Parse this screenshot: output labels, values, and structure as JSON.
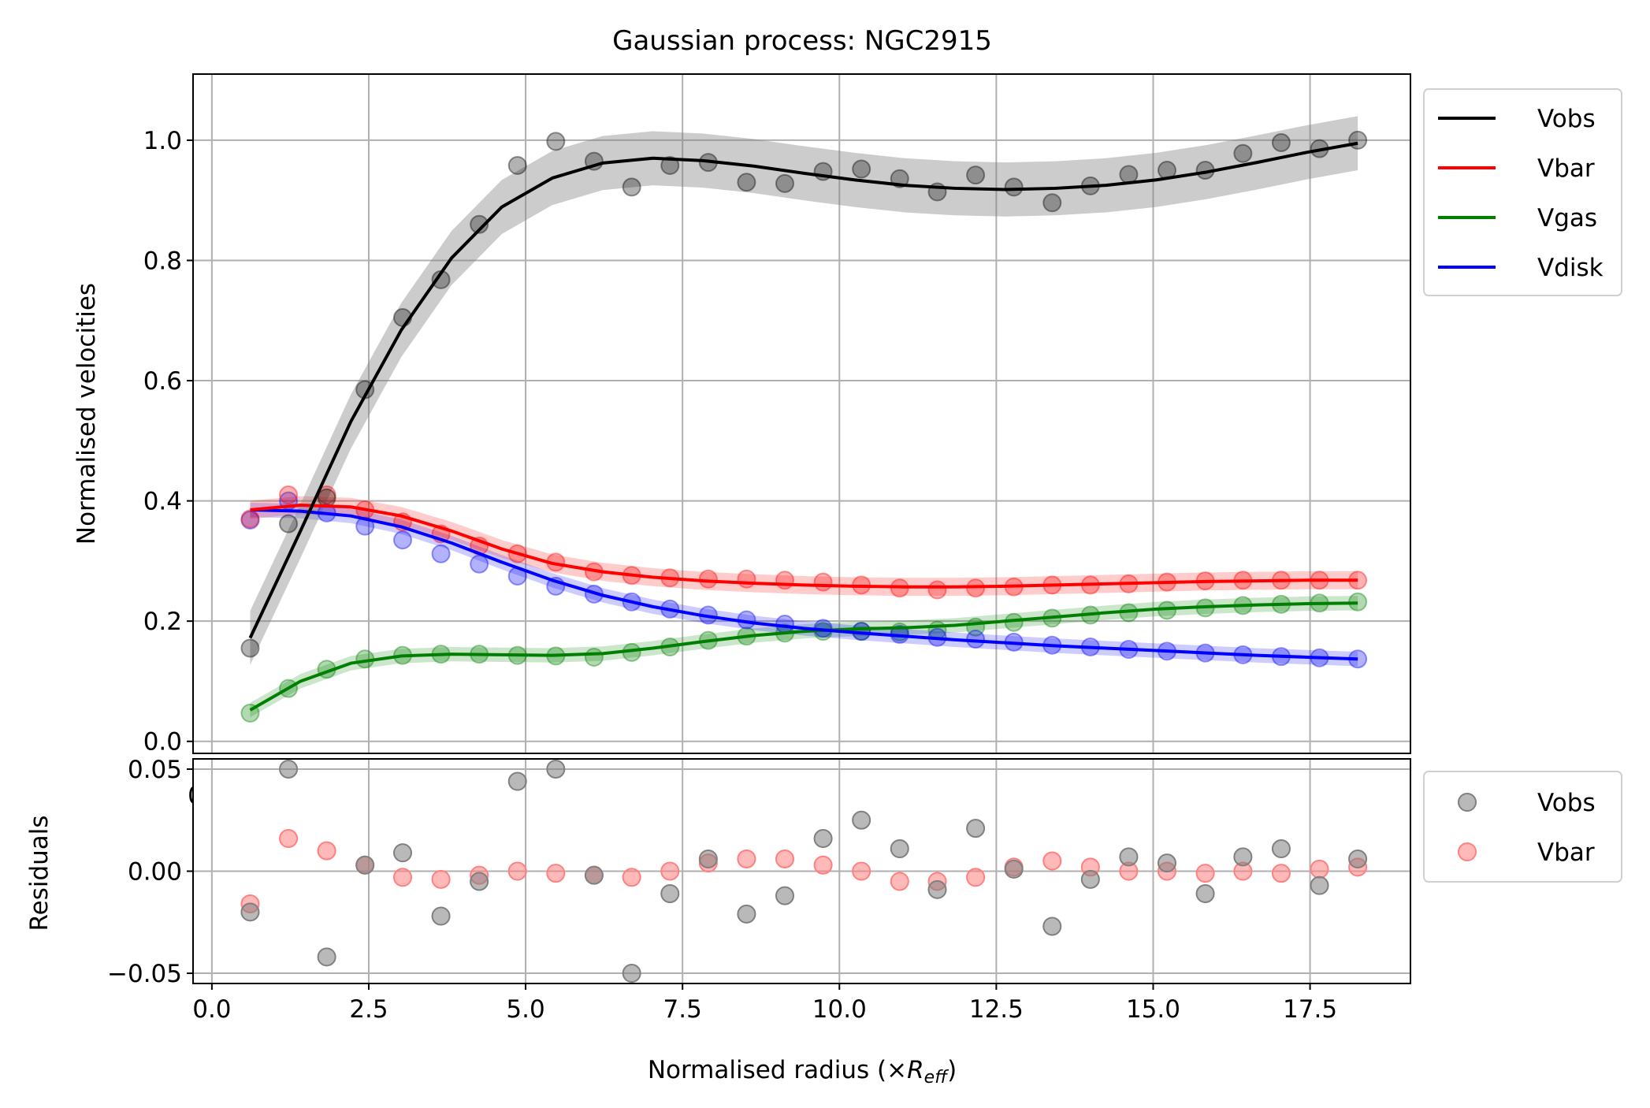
{
  "chart_data": [
    {
      "type": "line",
      "title": "Gaussian process: NGC2915",
      "xlabel": "",
      "ylabel": "Normalised velocities",
      "xlim": [
        -0.3,
        19.1
      ],
      "ylim": [
        -0.02,
        1.11
      ],
      "xticks": [
        0.0,
        2.5,
        5.0,
        7.5,
        10.0,
        12.5,
        15.0,
        17.5
      ],
      "yticks": [
        0.0,
        0.2,
        0.4,
        0.6,
        0.8,
        1.0
      ],
      "ytick_labels": [
        "0.0",
        "0.2",
        "0.4",
        "0.6",
        "0.8",
        "1.0"
      ],
      "grid": true,
      "legend_position": "outside-top-right",
      "x": [
        0.61,
        1.22,
        1.83,
        2.44,
        3.04,
        3.65,
        4.26,
        4.87,
        5.48,
        6.09,
        6.69,
        7.3,
        7.91,
        8.52,
        9.13,
        9.74,
        10.35,
        10.96,
        11.56,
        12.17,
        12.78,
        13.39,
        14.0,
        14.61,
        15.22,
        15.83,
        16.43,
        17.04,
        17.65,
        18.26
      ],
      "series": [
        {
          "name": "Vobs",
          "color": "#000000",
          "band_color": "#808080",
          "band_halfwidth": 0.045,
          "points": [
            0.155,
            0.362,
            0.405,
            0.585,
            0.705,
            0.768,
            0.86,
            0.958,
            0.998,
            0.965,
            0.922,
            0.958,
            0.963,
            0.93,
            0.928,
            0.948,
            0.952,
            0.936,
            0.914,
            0.942,
            0.922,
            0.896,
            0.924,
            0.943,
            0.95,
            0.95,
            0.978,
            0.996,
            0.986,
            1.0
          ],
          "fit": [
            0.172,
            0.35,
            0.532,
            0.684,
            0.804,
            0.889,
            0.937,
            0.962,
            0.97,
            0.966,
            0.957,
            0.945,
            0.934,
            0.925,
            0.92,
            0.918,
            0.92,
            0.925,
            0.934,
            0.947,
            0.963,
            0.98,
            0.995
          ]
        },
        {
          "name": "Vbar",
          "color": "#ff0000",
          "band_color": "#ff0000",
          "band_halfwidth": 0.015,
          "points": [
            0.37,
            0.41,
            0.41,
            0.385,
            0.365,
            0.345,
            0.325,
            0.312,
            0.298,
            0.282,
            0.276,
            0.272,
            0.27,
            0.27,
            0.268,
            0.265,
            0.26,
            0.255,
            0.252,
            0.255,
            0.257,
            0.26,
            0.26,
            0.262,
            0.265,
            0.267,
            0.268,
            0.268,
            0.268,
            0.268
          ],
          "fit": [
            0.385,
            0.393,
            0.39,
            0.375,
            0.35,
            0.32,
            0.296,
            0.282,
            0.273,
            0.267,
            0.263,
            0.26,
            0.258,
            0.257,
            0.257,
            0.258,
            0.26,
            0.262,
            0.264,
            0.266,
            0.267,
            0.268,
            0.268
          ]
        },
        {
          "name": "Vgas",
          "color": "#008000",
          "band_color": "#008000",
          "band_halfwidth": 0.012,
          "points": [
            0.047,
            0.088,
            0.12,
            0.137,
            0.143,
            0.145,
            0.145,
            0.143,
            0.142,
            0.14,
            0.148,
            0.157,
            0.168,
            0.175,
            0.18,
            0.183,
            0.183,
            0.182,
            0.185,
            0.19,
            0.198,
            0.205,
            0.21,
            0.214,
            0.218,
            0.222,
            0.226,
            0.228,
            0.23,
            0.232
          ],
          "fit": [
            0.052,
            0.1,
            0.13,
            0.142,
            0.145,
            0.144,
            0.143,
            0.146,
            0.155,
            0.166,
            0.176,
            0.183,
            0.187,
            0.189,
            0.193,
            0.2,
            0.207,
            0.214,
            0.22,
            0.224,
            0.227,
            0.229,
            0.23
          ]
        },
        {
          "name": "Vdisk",
          "color": "#0000ff",
          "band_color": "#0000ff",
          "band_halfwidth": 0.012,
          "points": [
            0.368,
            0.4,
            0.38,
            0.358,
            0.335,
            0.312,
            0.295,
            0.275,
            0.258,
            0.245,
            0.232,
            0.22,
            0.21,
            0.202,
            0.195,
            0.188,
            0.183,
            0.178,
            0.173,
            0.17,
            0.165,
            0.16,
            0.157,
            0.153,
            0.15,
            0.147,
            0.144,
            0.141,
            0.139,
            0.137
          ],
          "fit": [
            0.385,
            0.383,
            0.375,
            0.357,
            0.33,
            0.298,
            0.268,
            0.243,
            0.224,
            0.209,
            0.197,
            0.188,
            0.181,
            0.175,
            0.169,
            0.164,
            0.159,
            0.155,
            0.151,
            0.147,
            0.143,
            0.14,
            0.137
          ]
        }
      ],
      "legend": [
        {
          "label": "Vobs",
          "color": "#000000"
        },
        {
          "label": "Vbar",
          "color": "#ff0000"
        },
        {
          "label": "Vgas",
          "color": "#008000"
        },
        {
          "label": "Vdisk",
          "color": "#0000ff"
        }
      ]
    },
    {
      "type": "scatter",
      "title": "",
      "xlabel": "Normalised radius (×R_eff)",
      "xlabel_main": "Normalised radius (×",
      "xlabel_symbol": "R",
      "xlabel_sub": "eff",
      "xlabel_close": ")",
      "ylabel": "Residuals",
      "xlim": [
        -0.3,
        19.1
      ],
      "ylim": [
        -0.055,
        0.055
      ],
      "xticks": [
        0.0,
        2.5,
        5.0,
        7.5,
        10.0,
        12.5,
        15.0,
        17.5
      ],
      "xtick_labels": [
        "0.0",
        "2.5",
        "5.0",
        "7.5",
        "10.0",
        "12.5",
        "15.0",
        "17.5"
      ],
      "yticks": [
        -0.05,
        0.0,
        0.05
      ],
      "ytick_labels": [
        "−0.05",
        "0.00",
        "0.05"
      ],
      "grid": true,
      "legend_position": "outside-top-right",
      "x": [
        0.61,
        1.22,
        1.83,
        2.44,
        3.04,
        3.65,
        4.26,
        4.87,
        5.48,
        6.09,
        6.69,
        7.3,
        7.91,
        8.52,
        9.13,
        9.74,
        10.35,
        10.96,
        11.56,
        12.17,
        12.78,
        13.39,
        14.0,
        14.61,
        15.22,
        15.83,
        16.43,
        17.04,
        17.65,
        18.26
      ],
      "series": [
        {
          "name": "Vobs",
          "color": "#808080",
          "values": [
            -0.02,
            0.05,
            -0.042,
            0.003,
            0.009,
            -0.022,
            -0.005,
            0.044,
            0.05,
            -0.002,
            -0.05,
            -0.011,
            0.006,
            -0.021,
            -0.012,
            0.016,
            0.025,
            0.011,
            -0.009,
            0.021,
            0.001,
            -0.027,
            -0.004,
            0.007,
            0.004,
            -0.011,
            0.007,
            0.011,
            -0.007,
            0.006
          ]
        },
        {
          "name": "Vbar",
          "color": "#ff8080",
          "values": [
            -0.016,
            0.016,
            0.01,
            0.003,
            -0.003,
            -0.004,
            -0.002,
            0.0,
            -0.001,
            -0.002,
            -0.003,
            0.0,
            0.004,
            0.006,
            0.006,
            0.003,
            0.0,
            -0.005,
            -0.005,
            -0.003,
            0.002,
            0.005,
            0.002,
            0.0,
            0.0,
            -0.001,
            0.0,
            -0.001,
            0.001,
            0.002
          ]
        }
      ],
      "legend": [
        {
          "label": "Vobs",
          "color": "#808080"
        },
        {
          "label": "Vbar",
          "color": "#ff8080"
        }
      ],
      "clipped_top_tick_fragment": "0"
    }
  ]
}
